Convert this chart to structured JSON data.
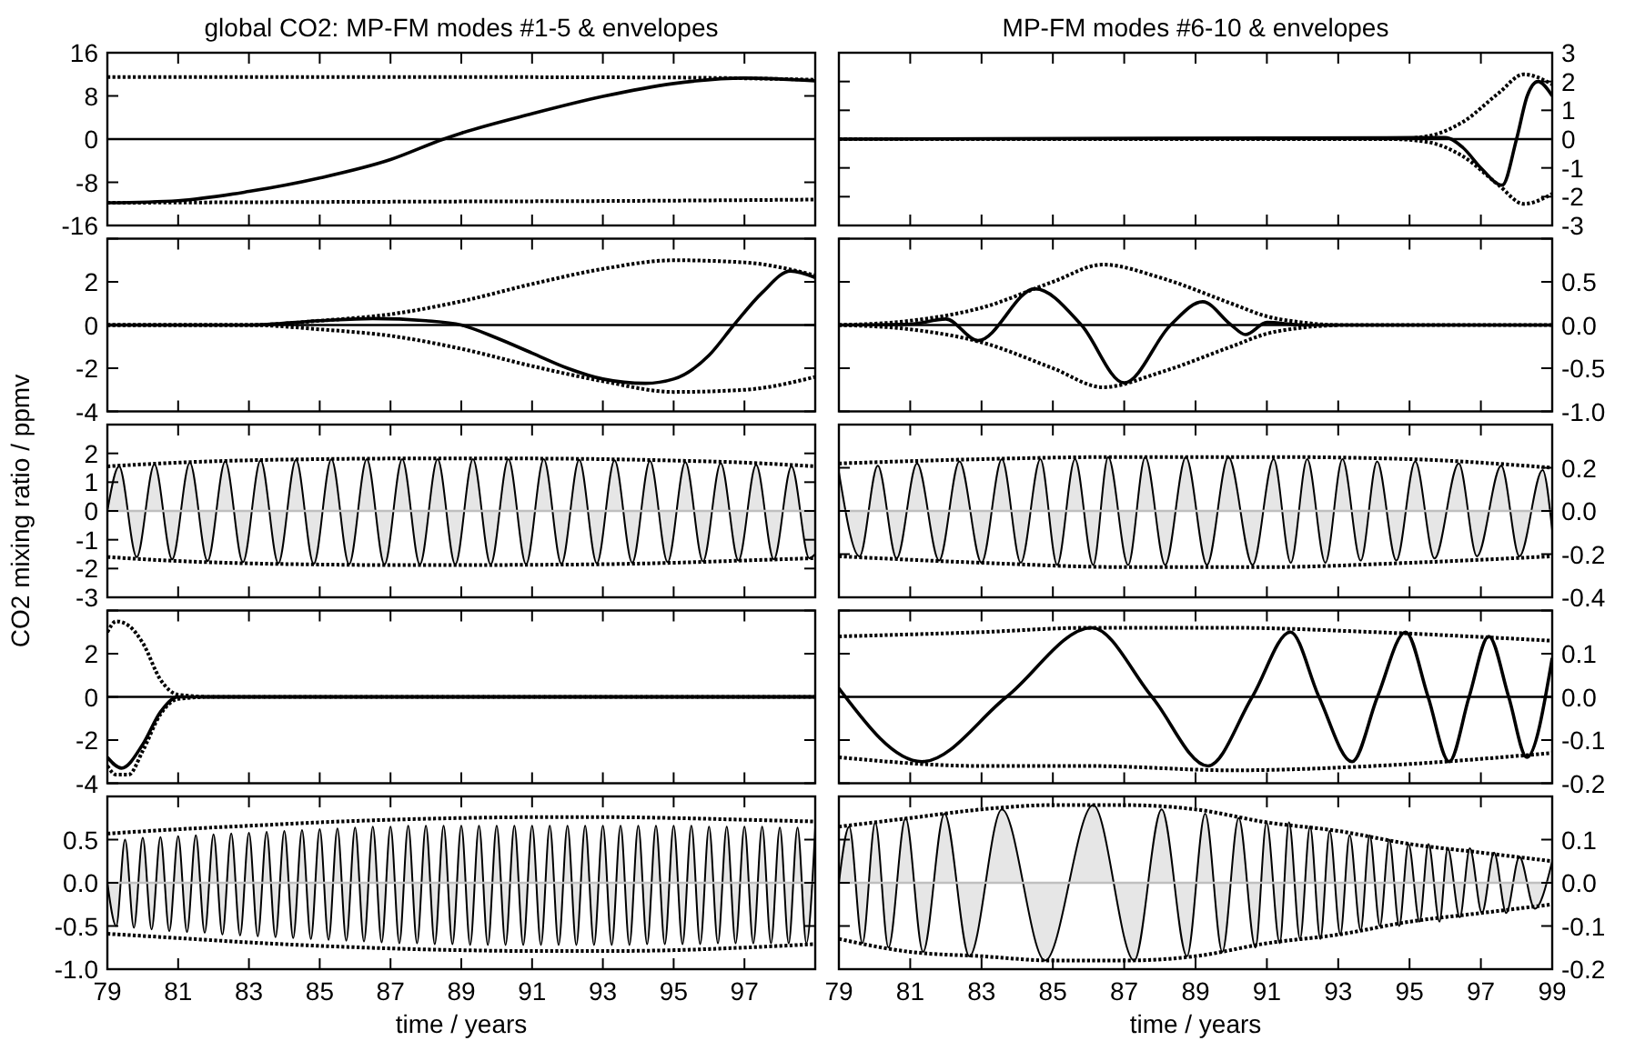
{
  "chart_data": [
    {
      "type": "line",
      "title": "global CO2: MP-FM modes #1-5 & envelopes",
      "xlim": [
        79,
        99
      ],
      "xticks": [
        79,
        81,
        83,
        85,
        87,
        89,
        91,
        93,
        95,
        97
      ],
      "ylim": [
        -16,
        16
      ],
      "yticks": [
        -16,
        -8,
        0,
        8,
        16
      ],
      "tick_labels": "y",
      "ref_lines": [
        {
          "axis": "y",
          "value": 0,
          "color": "#000000"
        }
      ],
      "series": [
        {
          "type": "line",
          "color": "#000000",
          "line_style": "dotted",
          "x": [
            79,
            87,
            95,
            99
          ],
          "values": [
            11.5,
            11.5,
            11.4,
            11.0
          ]
        },
        {
          "type": "line",
          "color": "#000000",
          "line_style": "dotted",
          "x": [
            79,
            87,
            95,
            99
          ],
          "values": [
            -11.8,
            -11.6,
            -11.4,
            -11.2
          ]
        },
        {
          "type": "line",
          "color": "#000000",
          "line_style": "solid",
          "x": [
            79,
            81,
            83,
            85,
            87,
            88.5,
            89,
            91,
            93,
            95,
            97,
            99
          ],
          "values": [
            -11.8,
            -11.4,
            -9.7,
            -7.2,
            -3.8,
            0,
            1.1,
            4.7,
            7.9,
            10.3,
            11.3,
            10.8
          ]
        }
      ]
    },
    {
      "type": "line",
      "title": "MP-FM modes #6-10 & envelopes",
      "xlim": [
        79,
        99
      ],
      "xticks": [
        79,
        81,
        83,
        85,
        87,
        89,
        91,
        93,
        95,
        97,
        99
      ],
      "ylim": [
        -3,
        3
      ],
      "yticks": [
        -3,
        -2,
        -1,
        0,
        1,
        2,
        3
      ],
      "tick_labels": "y",
      "ref_lines": [
        {
          "axis": "y",
          "value": 0,
          "color": "#000000"
        }
      ],
      "series": [
        {
          "type": "line",
          "color": "#000000",
          "line_style": "dotted",
          "x": [
            79,
            94.5,
            95.5,
            96.5,
            97.5,
            98.2,
            99
          ],
          "values": [
            0,
            0,
            0.1,
            0.6,
            1.6,
            2.25,
            1.9
          ]
        },
        {
          "type": "line",
          "color": "#000000",
          "line_style": "dotted",
          "x": [
            79,
            94.5,
            95.5,
            96.5,
            97.5,
            98.2,
            99
          ],
          "values": [
            0,
            0,
            -0.1,
            -0.6,
            -1.6,
            -2.25,
            -1.9
          ]
        },
        {
          "type": "line",
          "color": "#000000",
          "line_style": "solid",
          "x": [
            79,
            95.5,
            96,
            96.5,
            97,
            97.6,
            98,
            98.3,
            98.6,
            99
          ],
          "values": [
            0,
            0.05,
            0.05,
            -0.3,
            -1,
            -1.6,
            0,
            1.5,
            2,
            1.5
          ]
        }
      ]
    },
    {
      "type": "line",
      "xlim": [
        79,
        99
      ],
      "xticks": [
        79,
        81,
        83,
        85,
        87,
        89,
        91,
        93,
        95,
        97
      ],
      "ylim": [
        -4,
        4
      ],
      "yticks": [
        -4,
        -2,
        0,
        2,
        {
          "value": 4,
          "label": null
        }
      ],
      "tick_labels": "y",
      "ref_lines": [
        {
          "axis": "y",
          "value": 0,
          "color": "#000000"
        }
      ],
      "series": [
        {
          "type": "line",
          "color": "#000000",
          "line_style": "dotted",
          "x": [
            79,
            81,
            83,
            85,
            87,
            89,
            91,
            93,
            95,
            97,
            99
          ],
          "values": [
            0,
            0,
            0,
            0.2,
            0.5,
            1.1,
            1.9,
            2.6,
            3,
            2.9,
            2.3
          ]
        },
        {
          "type": "line",
          "color": "#000000",
          "line_style": "dotted",
          "x": [
            79,
            81,
            83,
            85,
            87,
            89,
            91,
            93,
            95,
            97,
            99
          ],
          "values": [
            0,
            0,
            0,
            -0.2,
            -0.5,
            -1.1,
            -1.9,
            -2.6,
            -3.1,
            -3,
            -2.4
          ]
        },
        {
          "type": "line",
          "color": "#000000",
          "line_style": "solid",
          "x": [
            79,
            83,
            85,
            86.5,
            88,
            89,
            90,
            91,
            92,
            93,
            94.2,
            95,
            96,
            96.7,
            97.5,
            98.3,
            99
          ],
          "values": [
            0,
            0,
            0.2,
            0.3,
            0.2,
            0,
            -0.6,
            -1.3,
            -2,
            -2.5,
            -2.7,
            -2.5,
            -1.4,
            0,
            1.5,
            2.5,
            2.2
          ]
        }
      ]
    },
    {
      "type": "line",
      "xlim": [
        79,
        99
      ],
      "xticks": [
        79,
        81,
        83,
        85,
        87,
        89,
        91,
        93,
        95,
        97,
        99
      ],
      "ylim": [
        -1,
        1
      ],
      "yticks": [
        {
          "value": -1,
          "label": "-1.0"
        },
        -0.5,
        {
          "value": 0,
          "label": "0.0"
        },
        0.5,
        {
          "value": 1,
          "label": null
        }
      ],
      "tick_labels": "y",
      "ref_lines": [
        {
          "axis": "y",
          "value": 0,
          "color": "#000000"
        }
      ],
      "series": [
        {
          "type": "line",
          "color": "#000000",
          "line_style": "dotted",
          "x": [
            79,
            81,
            83,
            85,
            86.4,
            88,
            90,
            91,
            92,
            93,
            99
          ],
          "values": [
            0,
            0.05,
            0.2,
            0.5,
            0.7,
            0.55,
            0.25,
            0.1,
            0.03,
            0,
            0
          ]
        },
        {
          "type": "line",
          "color": "#000000",
          "line_style": "dotted",
          "x": [
            79,
            81,
            83,
            85,
            86.4,
            88,
            90,
            91,
            92,
            93
          ],
          "values": [
            0,
            -0.05,
            -0.2,
            -0.5,
            -0.72,
            -0.55,
            -0.25,
            -0.1,
            -0.03,
            0
          ]
        },
        {
          "type": "line",
          "color": "#000000",
          "line_style": "solid",
          "x": [
            79,
            81,
            82,
            82.9,
            84.5,
            85.8,
            87,
            88.3,
            89.2,
            90,
            90.4,
            91,
            92,
            99
          ],
          "values": [
            0,
            0.01,
            0.07,
            -0.18,
            0.42,
            0,
            -0.67,
            0,
            0.27,
            0,
            -0.11,
            0.03,
            0,
            0
          ]
        }
      ]
    },
    {
      "type": "line",
      "ylabel": "CO2 mixing ratio / ppmv",
      "xlim": [
        79,
        99
      ],
      "xticks": [
        79,
        81,
        83,
        85,
        87,
        89,
        91,
        93,
        95,
        97
      ],
      "ylim": [
        -3,
        3
      ],
      "yticks": [
        -3,
        -2,
        -1,
        0,
        1,
        2,
        {
          "value": 3,
          "label": null
        }
      ],
      "tick_labels": "y",
      "ref_lines": [
        {
          "axis": "y",
          "value": 0,
          "color": "#bfbfbf"
        }
      ],
      "series": [
        {
          "type": "area",
          "color": "#e6e6e6",
          "x": [
            79,
            79.33,
            79.83,
            80.33,
            80.83,
            81.33,
            81.83,
            82.33,
            82.83,
            83.33,
            83.83,
            84.33,
            84.83,
            85.33,
            85.83,
            86.33,
            86.83,
            87.33,
            87.83,
            88.33,
            88.83,
            89.33,
            89.83,
            90.33,
            90.83,
            91.33,
            91.83,
            92.33,
            92.83,
            93.33,
            93.83,
            94.33,
            94.83,
            95.33,
            95.83,
            96.33,
            96.83,
            97.33,
            97.83,
            98.33,
            98.83,
            99
          ],
          "values": [
            0,
            1.55,
            -1.6,
            1.62,
            -1.68,
            1.68,
            -1.74,
            1.72,
            -1.78,
            1.76,
            -1.82,
            1.78,
            -1.84,
            1.8,
            -1.85,
            1.8,
            -1.86,
            1.8,
            -1.86,
            1.8,
            -1.86,
            1.8,
            -1.86,
            1.8,
            -1.85,
            1.8,
            -1.84,
            1.78,
            -1.82,
            1.76,
            -1.8,
            1.74,
            -1.78,
            1.7,
            -1.75,
            1.66,
            -1.72,
            1.6,
            -1.68,
            1.55,
            -1.64,
            -1.5
          ]
        },
        {
          "type": "line",
          "color": "#000000",
          "line_style": "dotted",
          "x": [
            79,
            81,
            83,
            85,
            87,
            89,
            91,
            93,
            95,
            97,
            99
          ],
          "values": [
            1.55,
            1.68,
            1.76,
            1.8,
            1.82,
            1.82,
            1.82,
            1.8,
            1.75,
            1.68,
            1.55
          ]
        },
        {
          "type": "line",
          "color": "#000000",
          "line_style": "dotted",
          "x": [
            79,
            81,
            83,
            85,
            87,
            89,
            91,
            93,
            95,
            97,
            99
          ],
          "values": [
            -1.6,
            -1.74,
            -1.82,
            -1.86,
            -1.88,
            -1.88,
            -1.87,
            -1.85,
            -1.8,
            -1.72,
            -1.64
          ]
        }
      ]
    },
    {
      "type": "line",
      "xlim": [
        79,
        99
      ],
      "xticks": [
        79,
        81,
        83,
        85,
        87,
        89,
        91,
        93,
        95,
        97,
        99
      ],
      "ylim": [
        -0.4,
        0.4
      ],
      "yticks": [
        -0.4,
        -0.2,
        {
          "value": 0,
          "label": "0.0"
        },
        0.2,
        {
          "value": 0.4,
          "label": null
        }
      ],
      "tick_labels": "y",
      "ref_lines": [
        {
          "axis": "y",
          "value": 0,
          "color": "#bfbfbf"
        }
      ],
      "series": [
        {
          "type": "area",
          "color": "#e6e6e6",
          "x": [
            79,
            79.58,
            80.09,
            80.62,
            81.19,
            81.81,
            82.38,
            83,
            83.57,
            84.1,
            84.65,
            85.12,
            85.62,
            86.13,
            86.55,
            87.11,
            87.59,
            88.15,
            88.73,
            89.32,
            89.92,
            90.6,
            91.19,
            91.67,
            92.13,
            92.64,
            93.12,
            93.63,
            94.09,
            94.63,
            95.16,
            95.7,
            96.38,
            96.89,
            97.57,
            98.08,
            98.73,
            99
          ],
          "values": [
            0.18,
            -0.21,
            0.21,
            -0.22,
            0.22,
            -0.23,
            0.23,
            -0.24,
            0.24,
            -0.24,
            0.24,
            -0.25,
            0.24,
            -0.25,
            0.25,
            -0.25,
            0.25,
            -0.25,
            0.25,
            -0.25,
            0.25,
            -0.25,
            0.24,
            -0.24,
            0.24,
            -0.24,
            0.24,
            -0.23,
            0.23,
            -0.23,
            0.23,
            -0.22,
            0.22,
            -0.21,
            0.21,
            -0.21,
            0.19,
            -0.09
          ]
        },
        {
          "type": "line",
          "color": "#000000",
          "line_style": "dotted",
          "x": [
            79,
            83,
            87,
            91,
            95,
            99
          ],
          "values": [
            0.22,
            0.24,
            0.25,
            0.25,
            0.24,
            0.2
          ]
        },
        {
          "type": "line",
          "color": "#000000",
          "line_style": "dotted",
          "x": [
            79,
            83,
            87,
            91,
            95,
            99
          ],
          "values": [
            -0.21,
            -0.24,
            -0.26,
            -0.26,
            -0.24,
            -0.21
          ]
        }
      ]
    },
    {
      "type": "line",
      "xlim": [
        79,
        99
      ],
      "xticks": [
        79,
        81,
        83,
        85,
        87,
        89,
        91,
        93,
        95,
        97
      ],
      "ylim": [
        -4,
        4
      ],
      "yticks": [
        -4,
        -2,
        0,
        2,
        {
          "value": 4,
          "label": null
        }
      ],
      "tick_labels": "y",
      "ref_lines": [
        {
          "axis": "y",
          "value": 0,
          "color": "#000000"
        }
      ],
      "series": [
        {
          "type": "line",
          "color": "#000000",
          "line_style": "dotted",
          "x": [
            79,
            79.25,
            79.6,
            80,
            80.5,
            81,
            82,
            99
          ],
          "values": [
            3,
            3.5,
            3.3,
            2.5,
            0.8,
            0.1,
            0,
            0
          ]
        },
        {
          "type": "line",
          "color": "#000000",
          "line_style": "dotted",
          "x": [
            79,
            79.25,
            79.6,
            80,
            80.5,
            81,
            82,
            99
          ],
          "values": [
            -3.2,
            -3.6,
            -3.6,
            -2.5,
            -0.8,
            -0.1,
            0,
            0
          ]
        },
        {
          "type": "line",
          "color": "#000000",
          "line_style": "solid",
          "x": [
            79,
            79.4,
            80,
            80.5,
            81,
            82,
            99
          ],
          "values": [
            -2.8,
            -3.3,
            -2.2,
            -0.7,
            0,
            0,
            0
          ]
        }
      ]
    },
    {
      "type": "line",
      "xlim": [
        79,
        99
      ],
      "xticks": [
        79,
        81,
        83,
        85,
        87,
        89,
        91,
        93,
        95,
        97,
        99
      ],
      "ylim": [
        -0.2,
        0.2
      ],
      "yticks": [
        -0.2,
        -0.1,
        {
          "value": 0,
          "label": "0.0"
        },
        0.1,
        {
          "value": 0.2,
          "label": null
        }
      ],
      "tick_labels": "y",
      "ref_lines": [
        {
          "axis": "y",
          "value": 0,
          "color": "#000000"
        }
      ],
      "series": [
        {
          "type": "line",
          "color": "#000000",
          "line_style": "dotted",
          "x": [
            79,
            83,
            86,
            90,
            94,
            99
          ],
          "values": [
            0.14,
            0.15,
            0.16,
            0.16,
            0.15,
            0.13
          ]
        },
        {
          "type": "line",
          "color": "#000000",
          "line_style": "dotted",
          "x": [
            79,
            83,
            86,
            90,
            94,
            99
          ],
          "values": [
            -0.14,
            -0.16,
            -0.16,
            -0.17,
            -0.16,
            -0.13
          ]
        },
        {
          "type": "line",
          "color": "#000000",
          "line_style": "solid",
          "x": [
            79,
            81.33,
            83.7,
            86.09,
            87.78,
            89.35,
            90.59,
            91.66,
            92.46,
            93.39,
            94.1,
            94.89,
            95.52,
            96.11,
            96.67,
            97.22,
            97.78,
            98.29,
            99
          ],
          "values": [
            0.02,
            -0.15,
            0,
            0.16,
            0,
            -0.16,
            0,
            0.15,
            0,
            -0.15,
            0,
            0.15,
            0,
            -0.15,
            0,
            0.14,
            0,
            -0.14,
            0.09
          ]
        }
      ]
    },
    {
      "type": "line",
      "xlabel": "time / years",
      "xlim": [
        79,
        99
      ],
      "xticks": [
        79,
        81,
        83,
        85,
        87,
        89,
        91,
        93,
        95,
        97
      ],
      "ylim": [
        -1,
        1
      ],
      "yticks": [
        {
          "value": -1,
          "label": "-1.0"
        },
        -0.5,
        {
          "value": 0,
          "label": "0.0"
        },
        0.5,
        {
          "value": 1,
          "label": null
        }
      ],
      "ref_lines": [
        {
          "axis": "y",
          "value": 0,
          "color": "#bfbfbf"
        }
      ],
      "series": [
        {
          "type": "area",
          "color": "#e6e6e6",
          "x": [
            79,
            79.25,
            79.5,
            79.75,
            80,
            80.25,
            80.5,
            80.75,
            81,
            81.25,
            81.5,
            81.75,
            82,
            82.25,
            82.5,
            82.75,
            83,
            83.25,
            83.5,
            83.75,
            84,
            84.25,
            84.5,
            84.75,
            85,
            85.25,
            85.5,
            85.75,
            86,
            86.25,
            86.5,
            86.75,
            87,
            87.25,
            87.5,
            87.75,
            88,
            88.25,
            88.5,
            88.75,
            89,
            89.25,
            89.5,
            89.75,
            90,
            90.25,
            90.5,
            90.75,
            91,
            91.25,
            91.5,
            91.75,
            92,
            92.25,
            92.5,
            92.75,
            93,
            93.25,
            93.5,
            93.75,
            94,
            94.25,
            94.5,
            94.75,
            95,
            95.25,
            95.5,
            95.75,
            96,
            96.25,
            96.5,
            96.75,
            97,
            97.25,
            97.5,
            97.75,
            98,
            98.25,
            98.5,
            98.75,
            99
          ],
          "values": [
            0,
            -0.5,
            0.5,
            -0.52,
            0.52,
            -0.54,
            0.53,
            -0.56,
            0.54,
            -0.57,
            0.55,
            -0.58,
            0.56,
            -0.6,
            0.57,
            -0.61,
            0.58,
            -0.62,
            0.59,
            -0.63,
            0.6,
            -0.64,
            0.61,
            -0.65,
            0.62,
            -0.66,
            0.63,
            -0.67,
            0.64,
            -0.68,
            0.65,
            -0.69,
            0.65,
            -0.7,
            0.66,
            -0.7,
            0.66,
            -0.71,
            0.66,
            -0.71,
            0.66,
            -0.72,
            0.66,
            -0.72,
            0.66,
            -0.72,
            0.66,
            -0.72,
            0.66,
            -0.72,
            0.66,
            -0.72,
            0.66,
            -0.72,
            0.66,
            -0.72,
            0.66,
            -0.72,
            0.66,
            -0.72,
            0.66,
            -0.71,
            0.66,
            -0.71,
            0.66,
            -0.71,
            0.66,
            -0.71,
            0.65,
            -0.7,
            0.65,
            -0.7,
            0.65,
            -0.7,
            0.65,
            -0.7,
            0.64,
            -0.7,
            0.64,
            -0.7,
            0.64
          ]
        },
        {
          "type": "line",
          "color": "#000000",
          "line_style": "dotted",
          "x": [
            79,
            81,
            83,
            85,
            87,
            89,
            91,
            93,
            95,
            97,
            99
          ],
          "values": [
            0.57,
            0.62,
            0.66,
            0.7,
            0.73,
            0.75,
            0.76,
            0.76,
            0.75,
            0.73,
            0.71
          ]
        },
        {
          "type": "line",
          "color": "#000000",
          "line_style": "dotted",
          "x": [
            79,
            81,
            83,
            85,
            87,
            89,
            91,
            93,
            95,
            97,
            99
          ],
          "values": [
            -0.59,
            -0.64,
            -0.69,
            -0.73,
            -0.76,
            -0.78,
            -0.79,
            -0.79,
            -0.78,
            -0.75,
            -0.71
          ]
        }
      ]
    },
    {
      "type": "line",
      "xlabel": "time / years",
      "xlim": [
        79,
        99
      ],
      "xticks": [
        79,
        81,
        83,
        85,
        87,
        89,
        91,
        93,
        95,
        97,
        99
      ],
      "ylim": [
        -0.2,
        0.2
      ],
      "yticks": [
        -0.2,
        -0.1,
        {
          "value": 0,
          "label": "0.0"
        },
        0.1,
        {
          "value": 0.2,
          "label": null
        }
      ],
      "ref_lines": [
        {
          "axis": "y",
          "value": 0,
          "color": "#bfbfbf"
        }
      ],
      "series": [
        {
          "type": "area",
          "color": "#e6e6e6",
          "x": [
            79,
            79.29,
            79.66,
            80.02,
            80.39,
            80.87,
            81.36,
            81.96,
            82.66,
            83.57,
            84.78,
            86.13,
            87.28,
            88.05,
            88.76,
            89.27,
            89.75,
            90.21,
            90.68,
            90.99,
            91.36,
            91.62,
            91.93,
            92.21,
            92.5,
            92.76,
            93.06,
            93.32,
            93.63,
            93.88,
            94.17,
            94.43,
            94.71,
            94.97,
            95.28,
            95.53,
            95.84,
            96.07,
            96.41,
            96.69,
            97.03,
            97.37,
            97.71,
            98.08,
            98.51,
            99
          ],
          "values": [
            0,
            0.13,
            -0.14,
            0.14,
            -0.15,
            0.15,
            -0.16,
            0.16,
            -0.17,
            0.17,
            -0.18,
            0.18,
            -0.18,
            0.17,
            -0.17,
            0.16,
            -0.16,
            0.15,
            -0.15,
            0.14,
            -0.14,
            0.14,
            -0.13,
            0.13,
            -0.13,
            0.12,
            -0.12,
            0.11,
            -0.11,
            0.11,
            -0.1,
            0.1,
            -0.1,
            0.09,
            -0.09,
            0.09,
            -0.09,
            0.08,
            -0.08,
            0.08,
            -0.07,
            0.07,
            -0.07,
            0.06,
            -0.06,
            0.05
          ]
        },
        {
          "type": "line",
          "color": "#000000",
          "line_style": "dotted",
          "x": [
            79,
            81,
            83,
            85,
            86,
            87,
            89,
            91,
            93,
            95,
            97,
            99
          ],
          "values": [
            0.13,
            0.15,
            0.17,
            0.18,
            0.18,
            0.18,
            0.17,
            0.14,
            0.12,
            0.09,
            0.07,
            0.05
          ]
        },
        {
          "type": "line",
          "color": "#000000",
          "line_style": "dotted",
          "x": [
            79,
            81,
            83,
            85,
            86,
            87,
            89,
            91,
            93,
            95,
            97,
            99
          ],
          "values": [
            -0.13,
            -0.16,
            -0.17,
            -0.18,
            -0.18,
            -0.18,
            -0.17,
            -0.14,
            -0.12,
            -0.09,
            -0.07,
            -0.05
          ]
        }
      ]
    }
  ]
}
